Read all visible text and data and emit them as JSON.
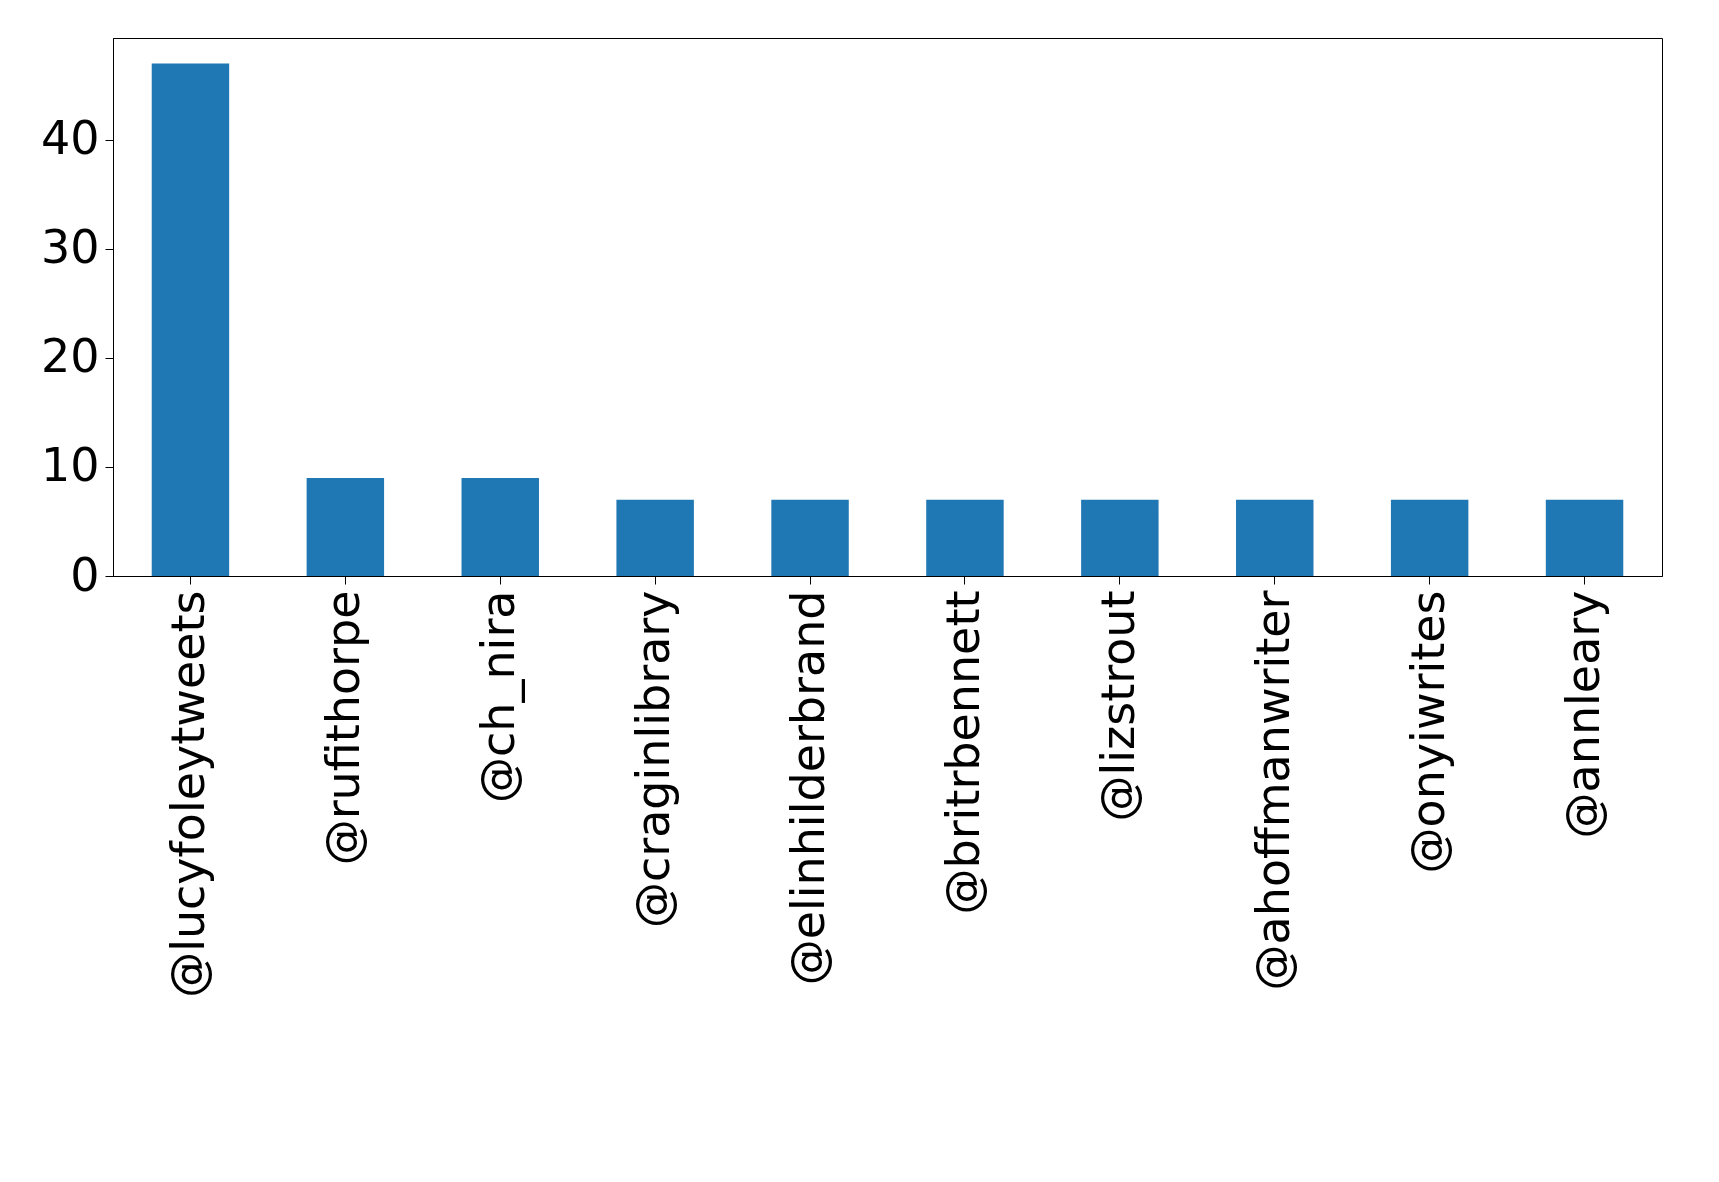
{
  "chart_data": {
    "type": "bar",
    "categories": [
      "@lucyfoleytweets",
      "@rufithorpe",
      "@ch_nira",
      "@craginlibrary",
      "@elinhilderbrand",
      "@britrbennett",
      "@lizstrout",
      "@ahoffmanwriter",
      "@onyiwrites",
      "@annleary"
    ],
    "values": [
      47,
      9,
      9,
      7,
      7,
      7,
      7,
      7,
      7,
      7
    ],
    "color": "#1f77b4",
    "ylim": [
      0,
      49.35
    ],
    "yticks": [
      0,
      10,
      20,
      30,
      40
    ],
    "grid": false
  }
}
